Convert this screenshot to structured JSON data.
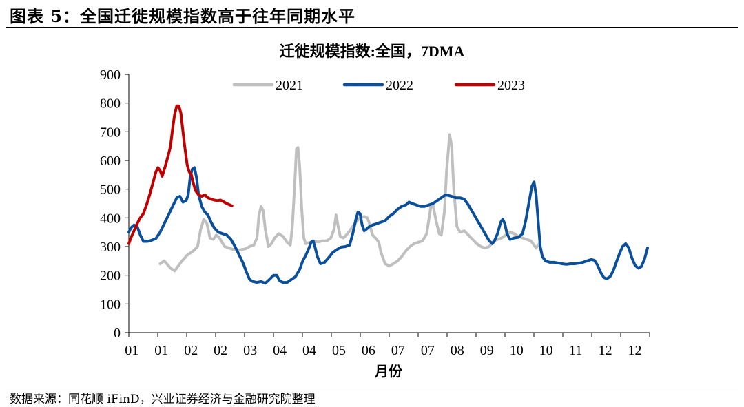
{
  "figure_title": "图表 5：全国迁徙规模指数高于往年同期水平",
  "source_note": "数据来源：同花顺 iFinD，兴业证券经济与金融研究院整理",
  "colors": {
    "2021": "#bfbfbf",
    "2022": "#0a4f9c",
    "2023": "#c00000"
  },
  "chart_data": {
    "type": "line",
    "title": "迁徙规模指数:全国，7DMA",
    "xlabel": "月份",
    "ylabel": "",
    "ylim": [
      0,
      900
    ],
    "yticks": [
      0,
      100,
      200,
      300,
      400,
      500,
      600,
      700,
      800,
      900
    ],
    "x_tick_labels": [
      "01",
      "01",
      "02",
      "02",
      "03",
      "04",
      "04",
      "05",
      "06",
      "07",
      "07",
      "08",
      "09",
      "10",
      "10",
      "11",
      "12",
      "12"
    ],
    "legend": [
      "2021",
      "2022",
      "2023"
    ],
    "legend_position": "top",
    "grid": false,
    "series": [
      {
        "name": "2021",
        "points": [
          [
            1.5,
            240
          ],
          [
            1.7,
            250
          ],
          [
            2.0,
            225
          ],
          [
            2.2,
            215
          ],
          [
            2.5,
            245
          ],
          [
            2.8,
            270
          ],
          [
            3.1,
            285
          ],
          [
            3.3,
            300
          ],
          [
            3.45,
            360
          ],
          [
            3.6,
            395
          ],
          [
            3.75,
            380
          ],
          [
            3.9,
            330
          ],
          [
            4.05,
            325
          ],
          [
            4.2,
            340
          ],
          [
            4.35,
            330
          ],
          [
            4.6,
            300
          ],
          [
            5.0,
            290
          ],
          [
            5.3,
            288
          ],
          [
            5.6,
            292
          ],
          [
            5.8,
            300
          ],
          [
            6.0,
            305
          ],
          [
            6.15,
            330
          ],
          [
            6.25,
            410
          ],
          [
            6.35,
            440
          ],
          [
            6.45,
            425
          ],
          [
            6.55,
            360
          ],
          [
            6.7,
            300
          ],
          [
            6.85,
            310
          ],
          [
            7.0,
            330
          ],
          [
            7.2,
            345
          ],
          [
            7.4,
            335
          ],
          [
            7.6,
            315
          ],
          [
            7.75,
            305
          ],
          [
            7.85,
            370
          ],
          [
            7.95,
            500
          ],
          [
            8.05,
            640
          ],
          [
            8.12,
            645
          ],
          [
            8.2,
            580
          ],
          [
            8.3,
            430
          ],
          [
            8.4,
            330
          ],
          [
            8.5,
            310
          ],
          [
            8.7,
            315
          ],
          [
            8.9,
            318
          ],
          [
            9.1,
            316
          ],
          [
            9.3,
            320
          ],
          [
            9.5,
            320
          ],
          [
            9.7,
            330
          ],
          [
            9.85,
            360
          ],
          [
            9.95,
            410
          ],
          [
            10.05,
            370
          ],
          [
            10.15,
            335
          ],
          [
            10.3,
            330
          ],
          [
            10.5,
            345
          ],
          [
            10.7,
            365
          ],
          [
            10.9,
            385
          ],
          [
            11.1,
            400
          ],
          [
            11.3,
            405
          ],
          [
            11.45,
            400
          ],
          [
            11.55,
            380
          ],
          [
            11.7,
            340
          ],
          [
            11.9,
            325
          ],
          [
            12.0,
            315
          ],
          [
            12.1,
            280
          ],
          [
            12.3,
            240
          ],
          [
            12.5,
            232
          ],
          [
            12.7,
            240
          ],
          [
            12.9,
            250
          ],
          [
            13.1,
            265
          ],
          [
            13.3,
            285
          ],
          [
            13.5,
            300
          ],
          [
            13.7,
            310
          ],
          [
            13.9,
            315
          ],
          [
            14.1,
            320
          ],
          [
            14.3,
            345
          ],
          [
            14.5,
            440
          ],
          [
            14.6,
            445
          ],
          [
            14.75,
            390
          ],
          [
            14.9,
            345
          ],
          [
            15.0,
            340
          ],
          [
            15.15,
            420
          ],
          [
            15.25,
            560
          ],
          [
            15.4,
            690
          ],
          [
            15.5,
            650
          ],
          [
            15.6,
            500
          ],
          [
            15.75,
            370
          ],
          [
            15.9,
            350
          ],
          [
            16.1,
            355
          ],
          [
            16.3,
            340
          ],
          [
            16.5,
            325
          ],
          [
            16.7,
            310
          ],
          [
            16.9,
            300
          ],
          [
            17.1,
            295
          ],
          [
            17.3,
            300
          ],
          [
            17.5,
            318
          ],
          [
            17.7,
            325
          ],
          [
            17.9,
            330
          ],
          [
            18.1,
            340
          ],
          [
            18.3,
            350
          ],
          [
            18.5,
            345
          ],
          [
            18.7,
            335
          ],
          [
            18.9,
            330
          ],
          [
            19.1,
            325
          ],
          [
            19.3,
            320
          ],
          [
            19.45,
            305
          ],
          [
            19.55,
            295
          ],
          [
            19.65,
            305
          ],
          [
            19.75,
            315
          ]
        ]
      },
      {
        "name": "2022",
        "points": [
          [
            0.0,
            350
          ],
          [
            0.1,
            365
          ],
          [
            0.25,
            375
          ],
          [
            0.4,
            370
          ],
          [
            0.55,
            340
          ],
          [
            0.7,
            318
          ],
          [
            0.9,
            318
          ],
          [
            1.1,
            322
          ],
          [
            1.3,
            328
          ],
          [
            1.5,
            350
          ],
          [
            1.7,
            380
          ],
          [
            1.9,
            410
          ],
          [
            2.1,
            440
          ],
          [
            2.3,
            470
          ],
          [
            2.45,
            475
          ],
          [
            2.6,
            455
          ],
          [
            2.75,
            460
          ],
          [
            2.85,
            480
          ],
          [
            2.95,
            545
          ],
          [
            3.05,
            570
          ],
          [
            3.15,
            575
          ],
          [
            3.25,
            540
          ],
          [
            3.35,
            480
          ],
          [
            3.5,
            440
          ],
          [
            3.65,
            420
          ],
          [
            3.8,
            410
          ],
          [
            3.95,
            385
          ],
          [
            4.1,
            365
          ],
          [
            4.3,
            350
          ],
          [
            4.5,
            345
          ],
          [
            4.7,
            340
          ],
          [
            4.9,
            325
          ],
          [
            5.1,
            300
          ],
          [
            5.3,
            270
          ],
          [
            5.5,
            240
          ],
          [
            5.65,
            210
          ],
          [
            5.8,
            185
          ],
          [
            5.95,
            178
          ],
          [
            6.15,
            175
          ],
          [
            6.35,
            178
          ],
          [
            6.55,
            172
          ],
          [
            6.75,
            185
          ],
          [
            6.95,
            200
          ],
          [
            7.1,
            200
          ],
          [
            7.25,
            180
          ],
          [
            7.4,
            175
          ],
          [
            7.6,
            175
          ],
          [
            7.8,
            185
          ],
          [
            8.0,
            195
          ],
          [
            8.2,
            220
          ],
          [
            8.35,
            250
          ],
          [
            8.5,
            270
          ],
          [
            8.65,
            295
          ],
          [
            8.75,
            315
          ],
          [
            8.85,
            320
          ],
          [
            8.95,
            295
          ],
          [
            9.05,
            265
          ],
          [
            9.2,
            240
          ],
          [
            9.4,
            245
          ],
          [
            9.6,
            262
          ],
          [
            9.8,
            280
          ],
          [
            10.0,
            290
          ],
          [
            10.2,
            298
          ],
          [
            10.4,
            300
          ],
          [
            10.6,
            305
          ],
          [
            10.75,
            345
          ],
          [
            10.9,
            395
          ],
          [
            11.0,
            420
          ],
          [
            11.1,
            415
          ],
          [
            11.2,
            375
          ],
          [
            11.3,
            355
          ],
          [
            11.4,
            360
          ],
          [
            11.55,
            370
          ],
          [
            11.7,
            375
          ],
          [
            11.9,
            380
          ],
          [
            12.1,
            385
          ],
          [
            12.3,
            390
          ],
          [
            12.5,
            405
          ],
          [
            12.7,
            415
          ],
          [
            12.9,
            430
          ],
          [
            13.1,
            440
          ],
          [
            13.3,
            445
          ],
          [
            13.45,
            455
          ],
          [
            13.6,
            450
          ],
          [
            13.8,
            445
          ],
          [
            14.0,
            440
          ],
          [
            14.2,
            440
          ],
          [
            14.4,
            445
          ],
          [
            14.6,
            450
          ],
          [
            14.8,
            460
          ],
          [
            15.0,
            470
          ],
          [
            15.2,
            480
          ],
          [
            15.35,
            478
          ],
          [
            15.5,
            475
          ],
          [
            15.7,
            470
          ],
          [
            15.9,
            470
          ],
          [
            16.1,
            465
          ],
          [
            16.3,
            445
          ],
          [
            16.5,
            420
          ],
          [
            16.7,
            395
          ],
          [
            16.9,
            370
          ],
          [
            17.1,
            345
          ],
          [
            17.3,
            320
          ],
          [
            17.45,
            310
          ],
          [
            17.55,
            320
          ],
          [
            17.7,
            345
          ],
          [
            17.85,
            385
          ],
          [
            17.95,
            395
          ],
          [
            18.05,
            380
          ],
          [
            18.15,
            345
          ],
          [
            18.3,
            325
          ],
          [
            18.5,
            330
          ],
          [
            18.7,
            332
          ],
          [
            18.9,
            345
          ],
          [
            19.05,
            390
          ],
          [
            19.2,
            450
          ],
          [
            19.35,
            510
          ],
          [
            19.45,
            525
          ],
          [
            19.55,
            480
          ],
          [
            19.65,
            390
          ],
          [
            19.75,
            300
          ],
          [
            19.85,
            265
          ],
          [
            20.0,
            250
          ],
          [
            20.2,
            245
          ],
          [
            20.4,
            245
          ],
          [
            20.6,
            243
          ],
          [
            20.8,
            240
          ],
          [
            21.0,
            238
          ],
          [
            21.2,
            240
          ],
          [
            21.4,
            240
          ],
          [
            21.6,
            242
          ],
          [
            21.8,
            245
          ],
          [
            22.0,
            250
          ],
          [
            22.2,
            255
          ],
          [
            22.35,
            252
          ],
          [
            22.5,
            235
          ],
          [
            22.65,
            210
          ],
          [
            22.8,
            192
          ],
          [
            22.95,
            188
          ],
          [
            23.1,
            195
          ],
          [
            23.25,
            215
          ],
          [
            23.4,
            245
          ],
          [
            23.55,
            275
          ],
          [
            23.7,
            300
          ],
          [
            23.85,
            310
          ],
          [
            24.0,
            295
          ],
          [
            24.15,
            260
          ],
          [
            24.3,
            235
          ],
          [
            24.45,
            225
          ],
          [
            24.6,
            230
          ],
          [
            24.75,
            255
          ],
          [
            24.9,
            295
          ]
        ]
      },
      {
        "name": "2023",
        "points": [
          [
            0.0,
            310
          ],
          [
            0.1,
            330
          ],
          [
            0.25,
            355
          ],
          [
            0.4,
            380
          ],
          [
            0.55,
            400
          ],
          [
            0.7,
            415
          ],
          [
            0.85,
            445
          ],
          [
            1.0,
            480
          ],
          [
            1.15,
            520
          ],
          [
            1.3,
            560
          ],
          [
            1.4,
            575
          ],
          [
            1.5,
            565
          ],
          [
            1.6,
            545
          ],
          [
            1.75,
            580
          ],
          [
            1.9,
            620
          ],
          [
            2.0,
            650
          ],
          [
            2.1,
            710
          ],
          [
            2.2,
            760
          ],
          [
            2.3,
            790
          ],
          [
            2.4,
            790
          ],
          [
            2.5,
            765
          ],
          [
            2.6,
            700
          ],
          [
            2.7,
            640
          ],
          [
            2.8,
            585
          ],
          [
            2.9,
            560
          ],
          [
            3.0,
            550
          ],
          [
            3.1,
            520
          ],
          [
            3.2,
            495
          ],
          [
            3.35,
            480
          ],
          [
            3.5,
            475
          ],
          [
            3.65,
            480
          ],
          [
            3.8,
            470
          ],
          [
            3.95,
            465
          ],
          [
            4.1,
            462
          ],
          [
            4.25,
            460
          ],
          [
            4.4,
            462
          ],
          [
            4.55,
            456
          ],
          [
            4.7,
            450
          ],
          [
            4.85,
            445
          ],
          [
            4.95,
            442
          ]
        ]
      }
    ]
  }
}
